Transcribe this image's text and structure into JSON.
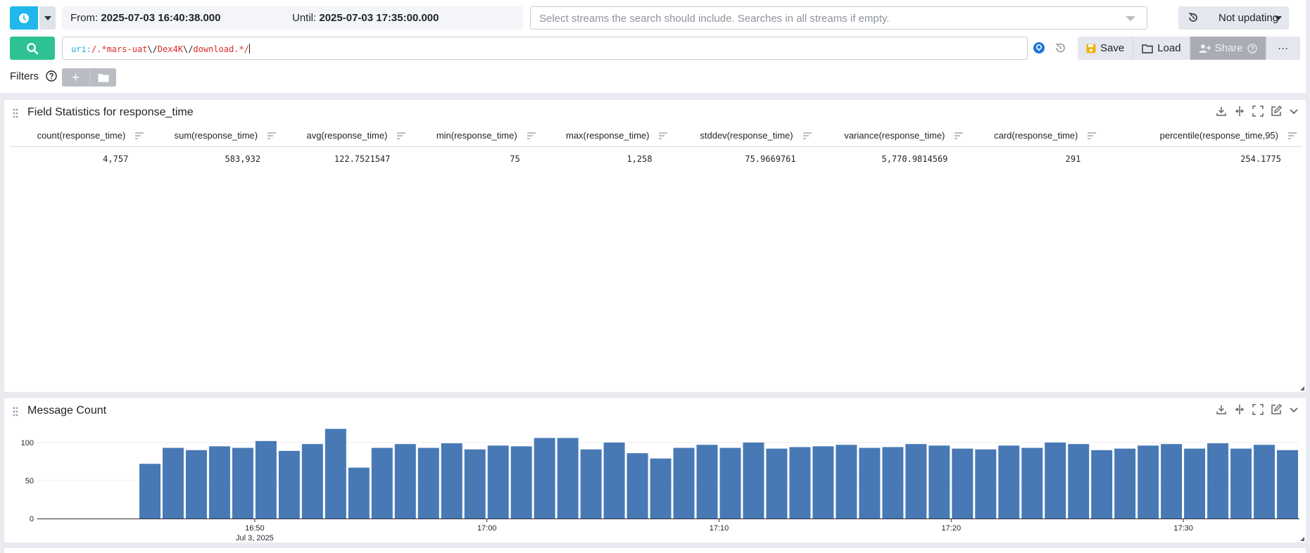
{
  "time": {
    "from_label": "From:",
    "from_value": "2025-07-03 16:40:38.000",
    "until_label": "Until:",
    "until_value": "2025-07-03 17:35:00.000"
  },
  "streams": {
    "placeholder": "Select streams the search should include. Searches in all streams if empty."
  },
  "refresh": {
    "label": "Not updating"
  },
  "query": {
    "segments": [
      {
        "text": "uri:",
        "kind": "k"
      },
      {
        "text": "/.*mars-uat",
        "kind": "p"
      },
      {
        "text": "\\/",
        "kind": "t"
      },
      {
        "text": "Dex4K",
        "kind": "p"
      },
      {
        "text": "\\/",
        "kind": "t"
      },
      {
        "text": "download.*/",
        "kind": "p"
      }
    ]
  },
  "actions": {
    "save": "Save",
    "load": "Load",
    "share": "Share",
    "more": "···"
  },
  "filters": {
    "label": "Filters",
    "add": "+"
  },
  "stats_panel": {
    "title": "Field Statistics for response_time",
    "columns": [
      "count(response_time)",
      "sum(response_time)",
      "avg(response_time)",
      "min(response_time)",
      "max(response_time)",
      "stddev(response_time)",
      "variance(response_time)",
      "card(response_time)",
      "percentile(response_time,95)"
    ],
    "values": [
      "4,757",
      "583,932",
      "122.7521547",
      "75",
      "1,258",
      "75.9669761",
      "5,770.9814569",
      "291",
      "254.1775"
    ]
  },
  "count_panel": {
    "title": "Message Count"
  },
  "chart_data": {
    "type": "bar",
    "x_start": "2025-07-03 16:40:38",
    "x_end": "2025-07-03 17:35:00",
    "bin_minutes": 1,
    "first_bin": "2025-07-03 16:45",
    "values": [
      72,
      93,
      90,
      95,
      93,
      102,
      89,
      98,
      118,
      67,
      93,
      98,
      93,
      99,
      91,
      96,
      95,
      106,
      106,
      91,
      100,
      86,
      79,
      93,
      97,
      93,
      100,
      92,
      94,
      95,
      97,
      93,
      94,
      98,
      96,
      92,
      91,
      96,
      93,
      100,
      98,
      90,
      92,
      96,
      98,
      92,
      99,
      92,
      97,
      90
    ],
    "ylim": [
      0,
      125
    ],
    "yticks": [
      0,
      50,
      100
    ],
    "xticks": [
      {
        "t": "2025-07-03 16:50",
        "label": "16:50",
        "sublabel": "Jul 3, 2025"
      },
      {
        "t": "2025-07-03 17:00",
        "label": "17:00"
      },
      {
        "t": "2025-07-03 17:10",
        "label": "17:10"
      },
      {
        "t": "2025-07-03 17:20",
        "label": "17:20"
      },
      {
        "t": "2025-07-03 17:30",
        "label": "17:30"
      }
    ],
    "bar_color": "#4879b5",
    "legend": false
  }
}
